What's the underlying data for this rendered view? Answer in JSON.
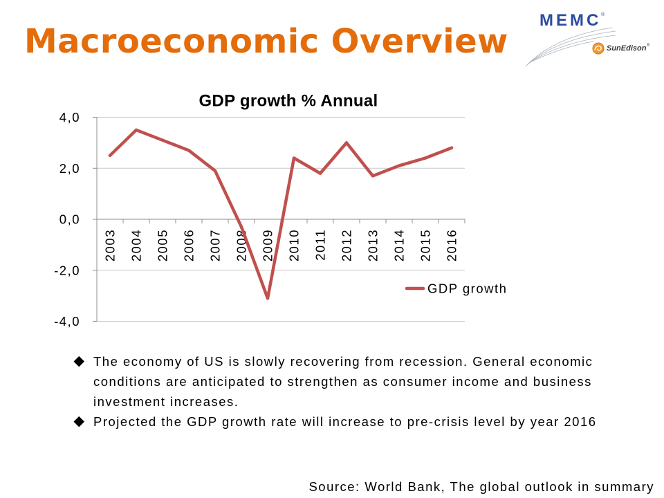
{
  "slide": {
    "title": "Macroeconomic Overview",
    "bullet_icon": "diamond",
    "bullets": [
      "The economy of US is slowly recovering from recession. General economic conditions are anticipated to strengthen as consumer income and business investment increases.",
      "Projected the GDP growth rate will increase to pre-crisis level by year 2016"
    ],
    "source": "Source: World Bank, The global outlook in summary"
  },
  "logos": {
    "memc": "MEMC",
    "memc_mark": "®",
    "sunedison": "SunEdison",
    "sunedison_mark": "®",
    "sunedison_icon": "sun-swirl-icon"
  },
  "colors": {
    "title": "#e46c0a",
    "series": "#c0504d",
    "gridline": "#c8c8c8",
    "axis": "#8c8c8c",
    "memc": "#2b4c9e",
    "sunedison_icon": "#f39a2b"
  },
  "chart_data": {
    "type": "line",
    "title": "GDP growth % Annual",
    "categories": [
      "2003",
      "2004",
      "2005",
      "2006",
      "2007",
      "2008",
      "2009",
      "2010",
      "2011",
      "2012",
      "2013",
      "2014",
      "2015",
      "2016"
    ],
    "series": [
      {
        "name": "GDP growth",
        "values": [
          2.5,
          3.5,
          3.1,
          2.7,
          1.9,
          -0.3,
          -3.1,
          2.4,
          1.8,
          3.0,
          1.7,
          2.1,
          2.4,
          2.8
        ]
      }
    ],
    "ylim": [
      -4,
      4
    ],
    "ytick_values": [
      4,
      2,
      0,
      -2,
      -4
    ],
    "ytick_labels": [
      "4,0",
      "2,0",
      "0,0",
      "-2,0",
      "-4,0"
    ],
    "grid": true,
    "legend": "right"
  }
}
